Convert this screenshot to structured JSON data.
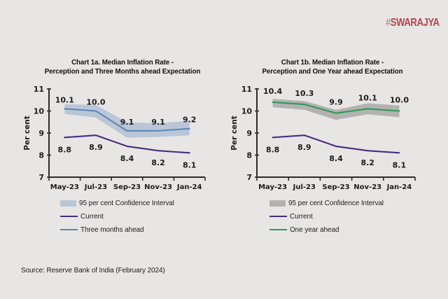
{
  "logo": {
    "hash": "#",
    "text": "SWARAJYA",
    "color": "#b5444b"
  },
  "page_background": "#e7e6e4",
  "source": "Source: Reserve Bank of India (February 2024)",
  "chart_data": [
    {
      "type": "line",
      "title_line1": "Chart 1a. Median Inflation Rate -",
      "title_line2": "Perception and Three Months ahead Expectation",
      "ylabel": "Per cent",
      "ylim": [
        7,
        11
      ],
      "yticks": [
        7,
        8,
        9,
        10,
        11
      ],
      "categories": [
        "May-23",
        "Jul-23",
        "Sep-23",
        "Nov-23",
        "Jan-24"
      ],
      "band": {
        "name": "95 per cent Confidence Interval",
        "upper": [
          10.3,
          10.28,
          9.48,
          9.45,
          9.55
        ],
        "lower": [
          9.87,
          9.7,
          8.79,
          8.82,
          8.9
        ],
        "color": "#bac6d6"
      },
      "series": [
        {
          "name": "Three months ahead",
          "values": [
            10.1,
            10.0,
            9.1,
            9.1,
            9.2
          ],
          "color": "#5d87b8",
          "label_side": "above"
        },
        {
          "name": "Current",
          "values": [
            8.8,
            8.9,
            8.4,
            8.2,
            8.1
          ],
          "color": "#4d2b7e",
          "label_side": "below"
        }
      ],
      "legend": [
        {
          "swatch": "band",
          "color": "#bac6d6",
          "label": "95 per cent Confidence Interval"
        },
        {
          "swatch": "line",
          "color": "#4d2b7e",
          "label": "Current"
        },
        {
          "swatch": "line",
          "color": "#5d87b8",
          "label": "Three months ahead"
        }
      ],
      "grid": false,
      "legend_position": "below-left"
    },
    {
      "type": "line",
      "title_line1": "Chart 1b. Median Inflation Rate -",
      "title_line2": "Perception and One Year ahead Expectation",
      "ylabel": "Per cent",
      "ylim": [
        7,
        11
      ],
      "yticks": [
        7,
        8,
        9,
        10,
        11
      ],
      "categories": [
        "May-23",
        "Jul-23",
        "Sep-23",
        "Nov-23",
        "Jan-24"
      ],
      "band": {
        "name": "95 per cent Confidence Interval",
        "upper": [
          10.55,
          10.45,
          10.05,
          10.35,
          10.25
        ],
        "lower": [
          10.17,
          10.05,
          9.6,
          9.85,
          9.72
        ],
        "color": "#b3b2b0"
      },
      "series": [
        {
          "name": "One year ahead",
          "values": [
            10.4,
            10.3,
            9.9,
            10.1,
            10.0
          ],
          "color": "#2b9b58",
          "label_side": "above"
        },
        {
          "name": "Current",
          "values": [
            8.8,
            8.9,
            8.4,
            8.2,
            8.1
          ],
          "color": "#4d2b7e",
          "label_side": "below"
        }
      ],
      "legend": [
        {
          "swatch": "band",
          "color": "#b3b2b0",
          "label": "95 per cent Confidence Interval"
        },
        {
          "swatch": "line",
          "color": "#4d2b7e",
          "label": "Current"
        },
        {
          "swatch": "line",
          "color": "#2b9b58",
          "label": "One year ahead"
        }
      ],
      "grid": false,
      "legend_position": "below-left"
    }
  ]
}
